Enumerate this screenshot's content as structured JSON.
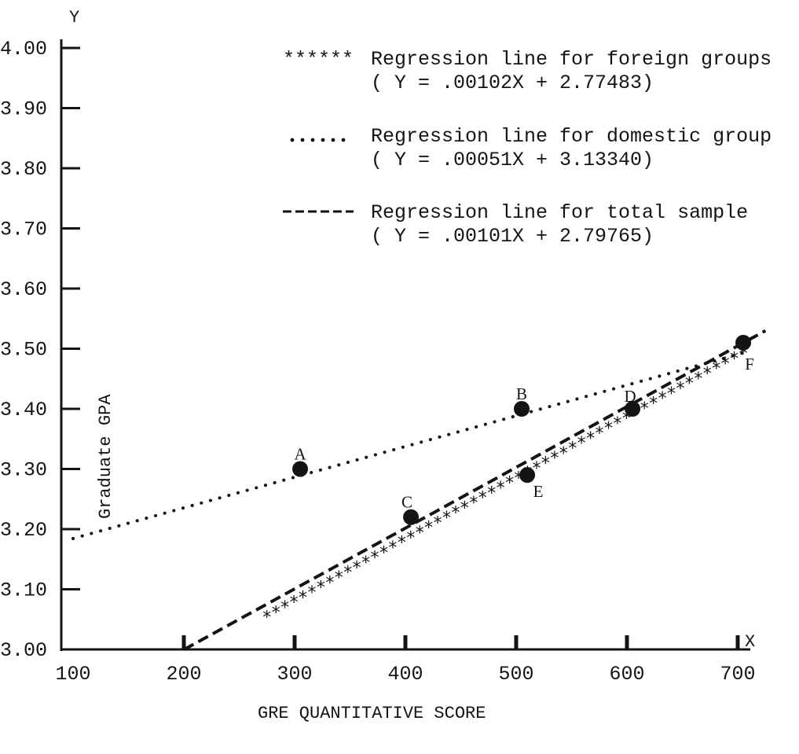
{
  "chart_data": {
    "type": "scatter",
    "title": "",
    "xlabel": "GRE QUANTITATIVE SCORE",
    "ylabel": "Graduate GPA",
    "x_axis_letter": "X",
    "y_axis_letter": "Y",
    "xlim": [
      100,
      700
    ],
    "ylim": [
      3.0,
      4.0
    ],
    "x_ticks": [
      100,
      200,
      300,
      400,
      500,
      600,
      700
    ],
    "x_tick_labels": [
      "100",
      "200",
      "300",
      "400",
      "500",
      "600",
      "700"
    ],
    "y_ticks": [
      3.0,
      3.1,
      3.2,
      3.3,
      3.4,
      3.5,
      3.6,
      3.7,
      3.8,
      3.9,
      4.0
    ],
    "y_tick_labels": [
      "3.00",
      "3.10",
      "3.20",
      "3.30",
      "3.40",
      "3.50",
      "3.60",
      "3.70",
      "3.80",
      "3.90",
      "4.00"
    ],
    "grid": false,
    "legend_position": "top-right",
    "points": [
      {
        "label": "A",
        "x": 305,
        "y": 3.3
      },
      {
        "label": "B",
        "x": 505,
        "y": 3.4
      },
      {
        "label": "C",
        "x": 405,
        "y": 3.22
      },
      {
        "label": "D",
        "x": 605,
        "y": 3.4
      },
      {
        "label": "E",
        "x": 510,
        "y": 3.29
      },
      {
        "label": "F",
        "x": 705,
        "y": 3.51
      }
    ],
    "series": [
      {
        "name": "Regression line for foreign groups",
        "equation": "( Y = .00102X + 2.77483)",
        "marker": "******",
        "style": "asterisk",
        "slope": 0.00102,
        "intercept": 2.77483,
        "x_range": [
          275,
          705
        ]
      },
      {
        "name": "Regression line for domestic group",
        "equation": "( Y = .00051X + 3.13340)",
        "marker": "......",
        "style": "dotted",
        "slope": 0.00051,
        "intercept": 3.1334,
        "x_range": [
          100,
          705
        ]
      },
      {
        "name": "Regression line for total sample",
        "equation": "( Y = .00101X + 2.79765)",
        "marker": "------",
        "style": "dashed",
        "slope": 0.00101,
        "intercept": 2.79765,
        "x_range": [
          200,
          725
        ]
      }
    ]
  },
  "colors": {
    "ink": "#141414",
    "background": "#ffffff"
  }
}
